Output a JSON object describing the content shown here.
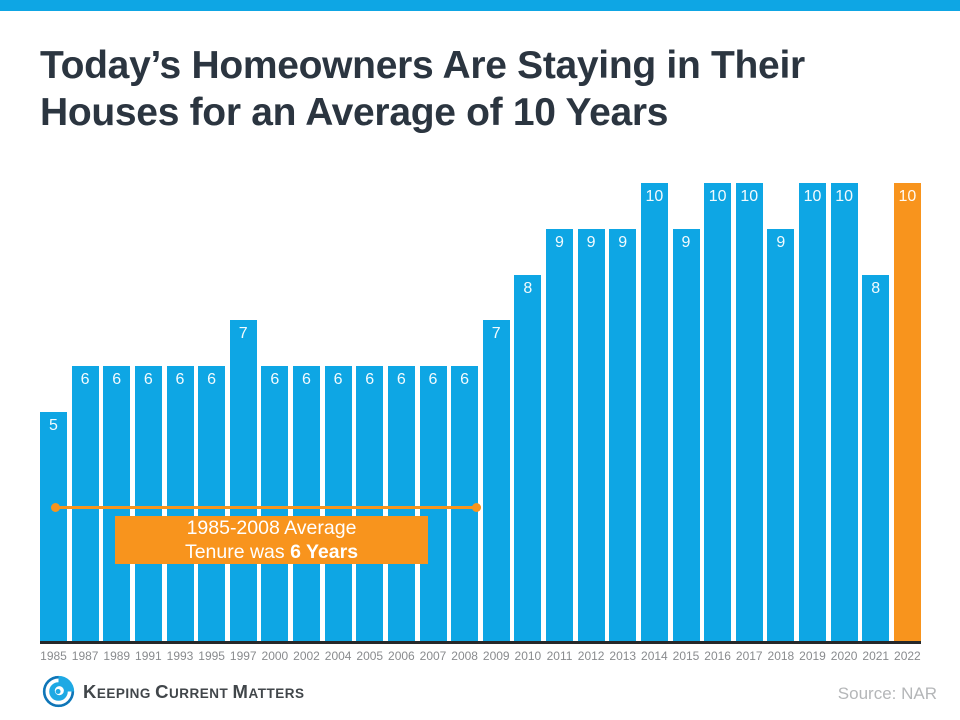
{
  "colors": {
    "brand_blue": "#0ea6e4",
    "accent_orange": "#f8941d",
    "title_text": "#2b3540",
    "axis_line": "#26282a",
    "tick_text": "#898b8e",
    "source_text": "#b4b6b8",
    "logo_text": "#41464a"
  },
  "title": {
    "line1": "Today’s Homeowners Are Staying in Their",
    "line2": "Houses for an Average of 10 Years"
  },
  "chart_data": {
    "type": "bar",
    "title": "Today’s Homeowners Are Staying in Their Houses for an Average of 10 Years",
    "categories": [
      "1985",
      "1987",
      "1989",
      "1991",
      "1993",
      "1995",
      "1997",
      "2000",
      "2002",
      "2004",
      "2005",
      "2006",
      "2007",
      "2008",
      "2009",
      "2010",
      "2011",
      "2012",
      "2013",
      "2014",
      "2015",
      "2016",
      "2017",
      "2018",
      "2019",
      "2020",
      "2021",
      "2022"
    ],
    "values": [
      5,
      6,
      6,
      6,
      6,
      6,
      7,
      6,
      6,
      6,
      6,
      6,
      6,
      6,
      7,
      8,
      9,
      9,
      9,
      10,
      9,
      10,
      10,
      9,
      10,
      10,
      8,
      10
    ],
    "xlabel": "",
    "ylabel": "",
    "ylim": [
      0,
      10.2
    ],
    "grid": false,
    "legend": "none",
    "value_labels": "white, inside top of each bar",
    "bar_color": "#0ea6e4",
    "highlight_color": "#f8941d",
    "highlight_index": 27,
    "annotation": {
      "span_from": "1985",
      "span_to": "2008",
      "line1": "1985-2008 Average",
      "line2_prefix": "Tenure was ",
      "line2_bold": "6 Years"
    }
  },
  "footer": {
    "logo": {
      "word1_initial": "K",
      "word1_rest": "EEPING",
      "word2_initial": "C",
      "word2_rest": "URRENT",
      "word3_initial": "M",
      "word3_rest": "ATTERS"
    },
    "source": "Source: NAR"
  }
}
